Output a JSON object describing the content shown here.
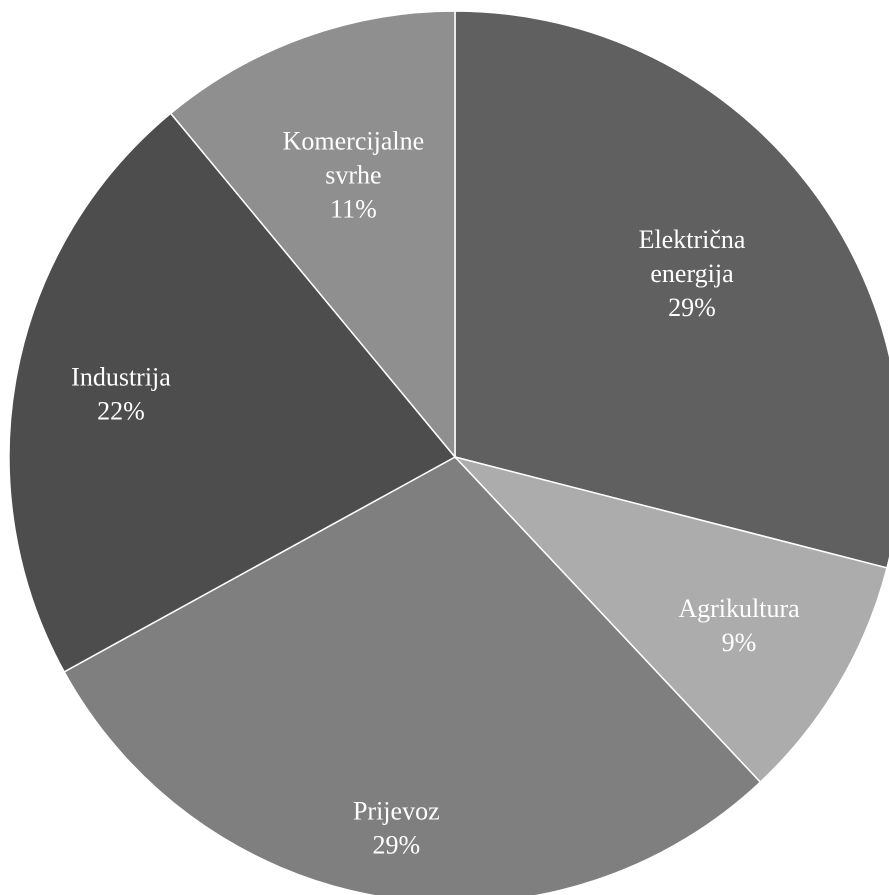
{
  "chart_data": {
    "type": "pie",
    "categories": [
      "Električna energija",
      "Agrikultura",
      "Prijevoz",
      "Industrija",
      "Komercijalne svrhe"
    ],
    "values": [
      29,
      9,
      29,
      22,
      11
    ],
    "slices": [
      {
        "name": "Električna energija",
        "label_lines": [
          "Električna",
          "energija"
        ],
        "value": 29,
        "percent_label": "29%",
        "color": "#606060"
      },
      {
        "name": "Agrikultura",
        "label_lines": [
          "Agrikultura"
        ],
        "value": 9,
        "percent_label": "9%",
        "color": "#acacac"
      },
      {
        "name": "Prijevoz",
        "label_lines": [
          "Prijevoz"
        ],
        "value": 29,
        "percent_label": "29%",
        "color": "#7f7f7f"
      },
      {
        "name": "Industrija",
        "label_lines": [
          "Industrija"
        ],
        "value": 22,
        "percent_label": "22%",
        "color": "#4d4d4d"
      },
      {
        "name": "Komercijalne svrhe",
        "label_lines": [
          "Komercijalne",
          "svrhe"
        ],
        "value": 11,
        "percent_label": "11%",
        "color": "#8f8f8f"
      }
    ],
    "start_angle_deg": 0,
    "direction": "clockwise",
    "title": "",
    "legend": "none"
  }
}
